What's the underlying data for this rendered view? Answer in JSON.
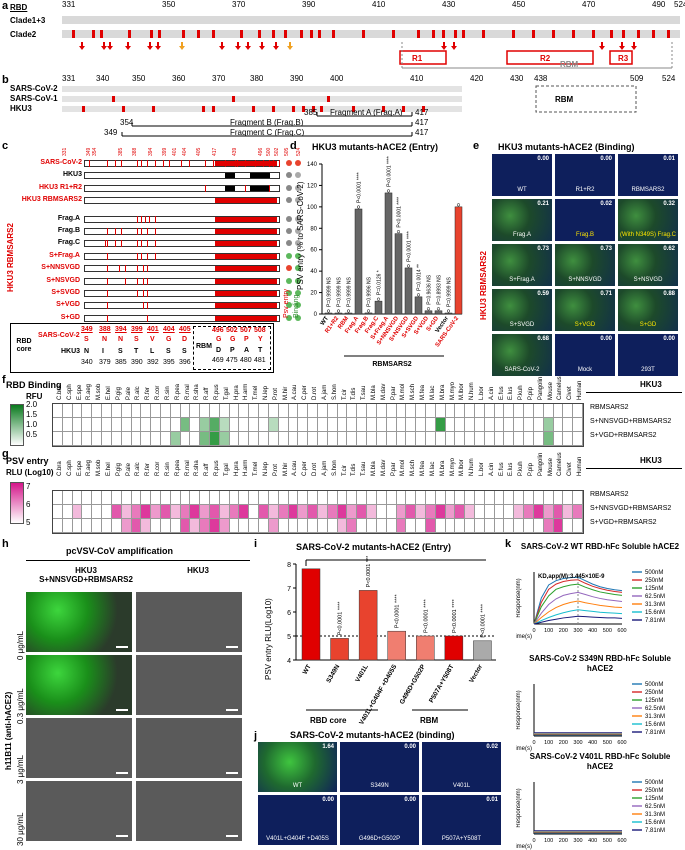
{
  "panel_labels": [
    "a",
    "b",
    "c",
    "d",
    "e",
    "f",
    "g",
    "h",
    "i",
    "j",
    "k"
  ],
  "a": {
    "rows": [
      "RBD",
      "Clade1+3",
      "Clade2"
    ],
    "ticks": [
      "331",
      "350",
      "370",
      "390",
      "410",
      "430",
      "450",
      "470",
      "490",
      "524"
    ],
    "regions": [
      "R1",
      "R2",
      "R3"
    ],
    "rbm_label": "RBM"
  },
  "b": {
    "rows": [
      "SARS-CoV-2",
      "SARS-CoV-1",
      "HKU3"
    ],
    "ticks": [
      "331",
      "340",
      "350",
      "360",
      "370",
      "380",
      "390",
      "400",
      "410",
      "420",
      "430",
      "438",
      "509",
      "524"
    ],
    "rbm_label": "RBM",
    "fragments": [
      {
        "start": "385",
        "label": "Fragment A (Frag.A)",
        "end": "417"
      },
      {
        "start": "354",
        "label": "Fragment B (Frag.B)",
        "end": "417"
      },
      {
        "start": "349",
        "label": "Fragment C (Frag.C)",
        "end": "417"
      }
    ]
  },
  "c": {
    "top_ticks": [
      "331",
      "349",
      "354",
      "385",
      "388",
      "394",
      "399",
      "401",
      "404",
      "405",
      "417",
      "439",
      "496",
      "500",
      "502",
      "505",
      "524"
    ],
    "constructs": [
      "SARS-CoV-2",
      "HKU3",
      "HKU3 R1+R2",
      "HKU3 RBMSARS2",
      "Frag.A",
      "Frag.B",
      "Frag.C",
      "S+Frag.A",
      "S+NNSVGD",
      "S+NSVGD",
      "S+SVGD",
      "S+VGD",
      "S+GD"
    ],
    "group_label": "HKU3 RBMSARS2",
    "col_labels": [
      "Psv entry",
      "Binding"
    ],
    "dots_entry": [
      "#e8432e",
      "#888888",
      "#888888",
      "#888888",
      "#888888",
      "#888888",
      "#888888",
      "#5cb85c",
      "#e8432e",
      "#5cb85c",
      "#5cb85c",
      "#5cb85c",
      "#5cb85c"
    ],
    "dots_binding": [
      "#e8432e",
      "#aaaaaa",
      "#aaaaaa",
      "#aaaaaa",
      "#aaaaaa",
      "#aaaaaa",
      "#aaaaaa",
      "#5cb85c",
      "#5cb85c",
      "#5cb85c",
      "#5cb85c",
      "#5cb85c",
      "#5cb85c"
    ],
    "table": {
      "title": "RBD core",
      "sars_label": "SARS-CoV-2",
      "hku3_label": "HKU3",
      "sars_aa": [
        "S",
        "N",
        "N",
        "S",
        "V",
        "G",
        "D"
      ],
      "sars_pos": [
        "349",
        "388",
        "394",
        "399",
        "401",
        "404",
        "405"
      ],
      "hku3_aa": [
        "N",
        "I",
        "S",
        "T",
        "L",
        "S",
        "S"
      ],
      "hku3_pos": [
        "340",
        "379",
        "385",
        "390",
        "392",
        "395",
        "396"
      ],
      "rbm_title": "RBM",
      "rbm_sars_aa": [
        "G",
        "G",
        "P",
        "Y"
      ],
      "rbm_sars_pos": [
        "496",
        "502",
        "507",
        "508"
      ],
      "rbm_hku3_aa": [
        "D",
        "P",
        "A",
        "T"
      ],
      "rbm_hku3_pos": [
        "469",
        "475",
        "480",
        "481"
      ]
    }
  },
  "d": {
    "title": "HKU3 mutants-hACE2 (Entry)",
    "ylabel": "PSV entry (% to SARS-CoV-2)",
    "xgroup": "RBMSARS2",
    "categories": [
      "WT",
      "R1+R2",
      "RBM",
      "Frag.A",
      "Frag.B",
      "Frag.C",
      "S+Frag.A",
      "S+NNSVGD",
      "S+NSVGD",
      "S+SVGD",
      "S+VGD",
      "S+GD",
      "Vector",
      "SARS-CoV-2"
    ],
    "pvals": [
      "P=0.9999 NS",
      "P=0.9999 NS",
      "P=0.9999 NS",
      "P<0.0001 ****",
      "P=0.9996 NS",
      "P=0.0126 *",
      "P<0.0001 ****",
      "P<0.0001 ****",
      "P<0.0001 ****",
      "P=0.0014 **",
      "P=0.9636 NS",
      "P=0.8993 NS",
      "P=0.9999 NS",
      ""
    ],
    "yticks": [
      "0",
      "20",
      "40",
      "60",
      "80",
      "100",
      "120",
      "140"
    ]
  },
  "e": {
    "title": "HKU3 mutants-hACE2 (Binding)",
    "side_label": "HKU3 RBMSARS2",
    "tiles": [
      {
        "num": "0.00",
        "label": "WT"
      },
      {
        "num": "0.00",
        "label": "R1+R2"
      },
      {
        "num": "0.01",
        "label": "RBMSARS2"
      },
      {
        "num": "0.21",
        "label": "Frag.A"
      },
      {
        "num": "0.02",
        "label": "Frag.B"
      },
      {
        "num": "0.32",
        "label": "(With N349S) Frag.C"
      },
      {
        "num": "0.73",
        "label": "S+Frag.A"
      },
      {
        "num": "0.73",
        "label": "S+NNSVGD"
      },
      {
        "num": "0.62",
        "label": "S+NSVGD"
      },
      {
        "num": "0.59",
        "label": "S+SVGD"
      },
      {
        "num": "0.71",
        "label": "S+VGD"
      },
      {
        "num": "0.88",
        "label": "S+GD"
      },
      {
        "num": "0.68",
        "label": "SARS-CoV-2"
      },
      {
        "num": "0.00",
        "label": "Mock"
      },
      {
        "num": "0.00",
        "label": "293T"
      }
    ]
  },
  "species": [
    "C.bra",
    "C.sph",
    "E.spe",
    "R.aeg",
    "M.sob",
    "E.hel",
    "P.gig",
    "P.ale",
    "R.alc",
    "R.fer",
    "R.cor",
    "R.sin",
    "R.pea",
    "R.mal",
    "R.sha",
    "R.aff",
    "R.pus",
    "T.gal",
    "H.pra",
    "H.arm",
    "T.mel",
    "N.lep",
    "P.rot",
    "M.hir",
    "A.cau",
    "C.per",
    "D.rot",
    "A.jam",
    "S.hon",
    "T.cir",
    "T.dis",
    "T.sau",
    "M.bla",
    "M.dav",
    "P.par",
    "M.mol",
    "M.sch",
    "M.fea",
    "M.lac",
    "M.bra",
    "M.myo",
    "M.lbor",
    "N.hum",
    "L.bor",
    "A.cin",
    "E.fus",
    "E.lus",
    "P.kuh",
    "P.pip",
    "Pangolin",
    "Mouse",
    "Camelus",
    "Civet",
    "Human"
  ],
  "f": {
    "title": "RBD Binding",
    "scale_label": "RFU",
    "scale_ticks": [
      "2.0",
      "1.5",
      "1.0",
      "0.5"
    ],
    "group_label": "HKU3",
    "rows": [
      "RBMSARS2",
      "S+NNSVGD+RBMSARS2",
      "S+VGD+RBMSARS2"
    ],
    "hits_row1": [],
    "hits_row2": [
      13,
      15,
      16,
      17,
      22,
      39,
      50
    ],
    "hits_row3": [
      12,
      15,
      16,
      17,
      50
    ]
  },
  "g": {
    "title": "PSV entry",
    "scale_label": "RLU (Log10)",
    "scale_ticks": [
      "7",
      "6",
      "5"
    ],
    "group_label": "HKU3",
    "rows": [
      "RBMSARS2",
      "S+NNSVGD+RBMSARS2",
      "S+VGD+RBMSARS2"
    ],
    "hits_row2": [
      2,
      6,
      7,
      8,
      9,
      10,
      11,
      12,
      13,
      14,
      15,
      16,
      17,
      18,
      19,
      21,
      22,
      23,
      24,
      25,
      26,
      27,
      28,
      29,
      30,
      31,
      32,
      35,
      36,
      37,
      38,
      39,
      40,
      41,
      42,
      47,
      48,
      49,
      50,
      51,
      52,
      53
    ],
    "hits_row3": [
      7,
      8,
      9,
      13,
      14,
      15,
      16,
      17,
      22,
      29,
      30,
      35,
      38,
      50,
      51
    ]
  },
  "h": {
    "title": "pcVSV-CoV amplification",
    "col1": "HKU3 S+NNSVGD+RBMSARS2",
    "col2": "HKU3",
    "side_label": "h11B11 (anti-hACE2)",
    "rows": [
      "0 μg/mL",
      "0.3 μg/mL",
      "3 μg/mL",
      "30 μg/mL"
    ]
  },
  "i": {
    "title": "SARS-CoV-2 mutants-hACE2 (Entry)",
    "ylabel": "PSV entry RLU(Log10)",
    "categories": [
      "WT",
      "S349N",
      "V401L",
      "V401L+G404F +D405S",
      "G496D+G502P",
      "P507A+Y508T",
      "Vector"
    ],
    "pvals": [
      "",
      "P<0.0001 ****",
      "P<0.0001 ****",
      "P<0.0001 ****",
      "P<0.0001 ****",
      "P<0.0001 ****",
      "P<0.0001 ****"
    ],
    "groups": [
      "RBD core",
      "RBM"
    ],
    "yticks": [
      "4",
      "5",
      "6",
      "7",
      "8"
    ]
  },
  "j": {
    "title": "SARS-CoV-2 mutants-hACE2 (binding)",
    "tiles": [
      {
        "num": "1.64",
        "label": "WT"
      },
      {
        "num": "0.00",
        "label": "S349N"
      },
      {
        "num": "0.02",
        "label": "V401L"
      },
      {
        "num": "0.00",
        "label": "V401L+G404F +D405S"
      },
      {
        "num": "0.00",
        "label": "G496D+G502P"
      },
      {
        "num": "0.01",
        "label": "P507A+Y508T"
      }
    ]
  },
  "k": {
    "charts": [
      {
        "title": "SARS-CoV-2 WT RBD-hFc Soluble hACE2",
        "kd": "KD,app(M):3.445×10E-9"
      },
      {
        "title": "SARS-CoV-2 S349N RBD-hFc Soluble hACE2",
        "kd": ""
      },
      {
        "title": "SARS-CoV-2 V401L RBD-hFc Soluble hACE2",
        "kd": ""
      }
    ],
    "ylabel": "Response(nm)",
    "xlabel": "Time(s)",
    "xticks": [
      "0",
      "100",
      "200",
      "300",
      "400",
      "500",
      "600"
    ],
    "legend": [
      "500nM",
      "250nM",
      "125nM",
      "62.5nM",
      "31.3nM",
      "15.6nM",
      "7.81nM"
    ],
    "legend_colors": [
      "#1f77b4",
      "#d62728",
      "#2ca02c",
      "#9467bd",
      "#ff7f0e",
      "#17becf",
      "#1a1a7a"
    ]
  },
  "chart_data": [
    {
      "type": "bar",
      "title": "HKU3 mutants-hACE2 (Entry)",
      "ylabel": "PSV entry (% to SARS-CoV-2)",
      "categories": [
        "WT",
        "R1+R2",
        "RBM",
        "Frag.A",
        "Frag.B",
        "Frag.C",
        "S+Frag.A",
        "S+NNSVGD",
        "S+NSVGD",
        "S+SVGD",
        "S+VGD",
        "S+GD",
        "Vector",
        "SARS-CoV-2"
      ],
      "values": [
        0.5,
        0.5,
        0.5,
        98,
        1,
        12,
        113,
        75,
        43,
        16,
        3,
        3,
        0.3,
        100
      ],
      "colors": [
        "#666666",
        "#666666",
        "#666666",
        "#666666",
        "#666666",
        "#666666",
        "#666666",
        "#666666",
        "#666666",
        "#666666",
        "#666666",
        "#666666",
        "#666666",
        "#e8432e"
      ],
      "ylim": [
        0,
        140
      ]
    },
    {
      "type": "bar",
      "title": "SARS-CoV-2 mutants-hACE2 (Entry)",
      "ylabel": "PSV entry RLU(Log10)",
      "categories": [
        "WT",
        "S349N",
        "V401L",
        "V401L+G404F +D405S",
        "G496D+G502P",
        "P507A+Y508T",
        "Vector"
      ],
      "values": [
        7.8,
        4.9,
        6.9,
        5.2,
        5.0,
        5.0,
        4.8
      ],
      "colors": [
        "#e00000",
        "#e8432e",
        "#e8432e",
        "#f07e70",
        "#f07e70",
        "#e00000",
        "#aaaaaa"
      ],
      "ylim": [
        4,
        8
      ]
    },
    {
      "type": "line",
      "title": "SARS-CoV-2 WT RBD-hFc Soluble hACE2",
      "x": [
        0,
        50,
        100,
        150,
        200,
        250,
        300,
        350,
        400,
        450,
        500,
        550,
        600
      ],
      "series": [
        {
          "name": "500nM",
          "values": [
            0,
            0.6,
            0.9,
            1.0,
            1.05,
            1.07,
            1.08,
            1.0,
            0.92,
            0.86,
            0.82,
            0.79,
            0.77
          ]
        },
        {
          "name": "250nM",
          "values": [
            0,
            0.5,
            0.8,
            0.92,
            0.98,
            1.01,
            1.02,
            0.94,
            0.87,
            0.82,
            0.78,
            0.75,
            0.73
          ]
        },
        {
          "name": "125nM",
          "values": [
            0,
            0.4,
            0.65,
            0.8,
            0.86,
            0.9,
            0.92,
            0.85,
            0.79,
            0.74,
            0.71,
            0.68,
            0.66
          ]
        },
        {
          "name": "62.5nM",
          "values": [
            0,
            0.25,
            0.45,
            0.58,
            0.66,
            0.7,
            0.73,
            0.68,
            0.63,
            0.59,
            0.56,
            0.54,
            0.52
          ]
        },
        {
          "name": "31.3nM",
          "values": [
            0,
            0.15,
            0.28,
            0.38,
            0.45,
            0.5,
            0.53,
            0.49,
            0.46,
            0.43,
            0.41,
            0.39,
            0.38
          ]
        },
        {
          "name": "15.6nM",
          "values": [
            0,
            0.08,
            0.15,
            0.21,
            0.26,
            0.3,
            0.33,
            0.31,
            0.29,
            0.27,
            0.26,
            0.25,
            0.24
          ]
        },
        {
          "name": "7.81nM",
          "values": [
            0,
            0.04,
            0.08,
            0.11,
            0.14,
            0.16,
            0.18,
            0.17,
            0.16,
            0.15,
            0.14,
            0.14,
            0.13
          ]
        }
      ],
      "ylim": [
        0,
        1.2
      ]
    }
  ]
}
